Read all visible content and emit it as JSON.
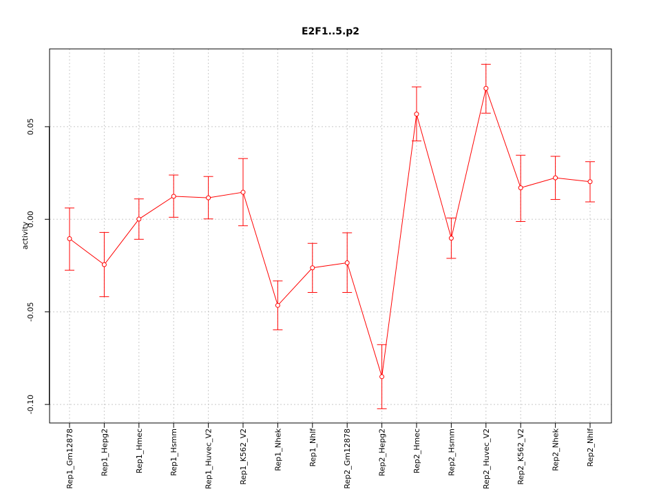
{
  "chart_data": {
    "type": "line",
    "title": "E2F1..5.p2",
    "xlabel": "",
    "ylabel": "activity",
    "ylim": [
      -0.11,
      0.092
    ],
    "yticks": [
      -0.1,
      -0.05,
      0.0,
      0.05
    ],
    "ytick_labels": [
      "-0.10",
      "-0.05",
      "0.00",
      "0.05"
    ],
    "grid": true,
    "categories": [
      "Rep1_Gm12878",
      "Rep1_Hepg2",
      "Rep1_Hmec",
      "Rep1_Hsmm",
      "Rep1_Huvec_V2",
      "Rep1_K562_V2",
      "Rep1_Nhek",
      "Rep1_Nhlf",
      "Rep2_Gm12878",
      "Rep2_Hepg2",
      "Rep2_Hmec",
      "Rep2_Hsmm",
      "Rep2_Huvec_V2",
      "Rep2_K562_V2",
      "Rep2_Nhek",
      "Rep2_Nhlf"
    ],
    "series": [
      {
        "name": "activity",
        "color": "#ff0000",
        "values": [
          -0.0105,
          -0.0245,
          0.0001,
          0.0124,
          0.0116,
          0.0146,
          -0.0465,
          -0.0262,
          -0.0235,
          -0.085,
          0.0568,
          -0.0102,
          0.0707,
          0.017,
          0.0224,
          0.0203
        ],
        "err_low": [
          -0.0275,
          -0.0418,
          -0.0108,
          0.0011,
          0.0002,
          -0.0035,
          -0.0597,
          -0.0395,
          -0.0395,
          -0.1023,
          0.0423,
          -0.0211,
          0.0573,
          -0.0012,
          0.0107,
          0.0094
        ],
        "err_high": [
          0.0061,
          -0.0071,
          0.011,
          0.0239,
          0.0231,
          0.0328,
          -0.0333,
          -0.013,
          -0.0073,
          -0.0677,
          0.0715,
          0.0007,
          0.0837,
          0.0346,
          0.034,
          0.0311
        ]
      }
    ]
  }
}
